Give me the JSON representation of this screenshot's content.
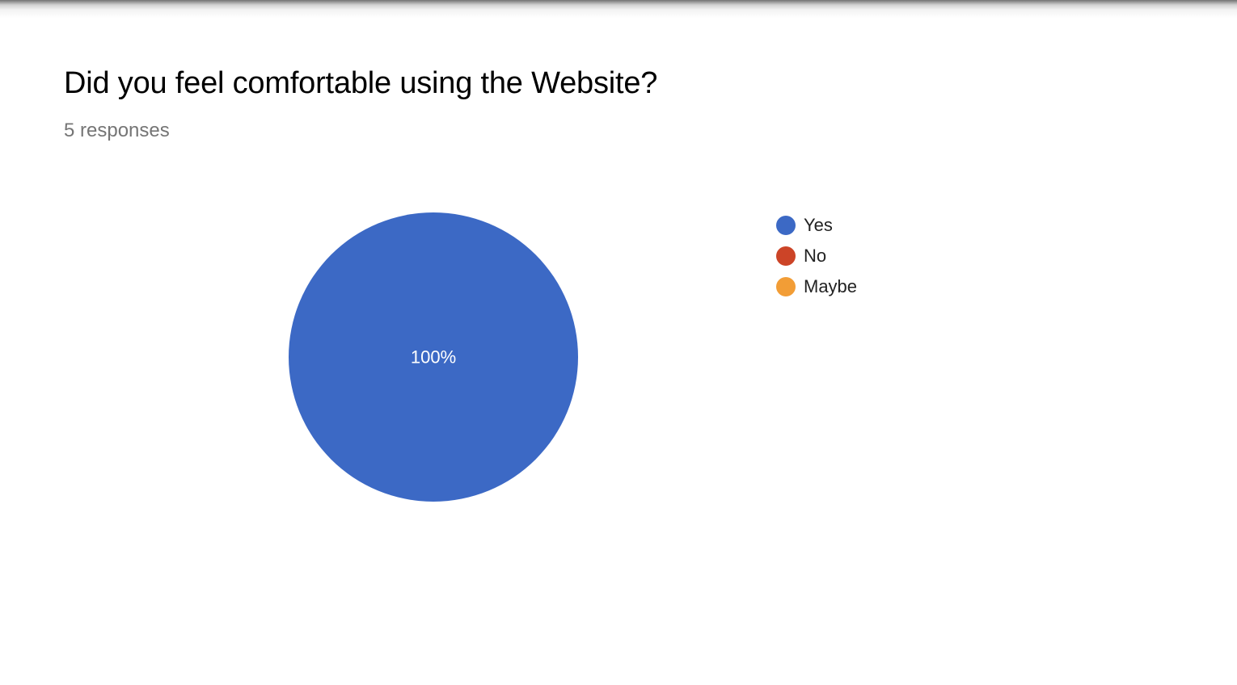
{
  "question": {
    "title": "Did you feel comfortable using the Website?",
    "responses_label": "5 responses"
  },
  "colors": {
    "Yes": "#3c69c5",
    "No": "#cc4427",
    "Maybe": "#f29d36",
    "slice_label": "#ffffff"
  },
  "chart_data": {
    "type": "pie",
    "categories": [
      "Yes",
      "No",
      "Maybe"
    ],
    "values": [
      100,
      0,
      0
    ],
    "slice_labels": [
      "100%",
      "",
      ""
    ],
    "legend_position": "right"
  }
}
